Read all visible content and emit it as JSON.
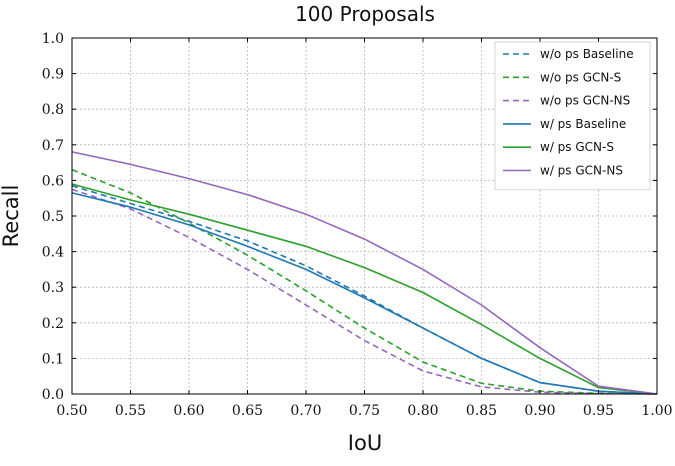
{
  "chart_data": {
    "type": "line",
    "title": "100 Proposals",
    "xlabel": "IoU",
    "ylabel": "Recall",
    "xlim": [
      0.5,
      1.0
    ],
    "ylim": [
      0.0,
      1.0
    ],
    "grid": true,
    "legend_position": "top-right",
    "x_ticks": [
      "0.50",
      "0.55",
      "0.60",
      "0.65",
      "0.70",
      "0.75",
      "0.80",
      "0.85",
      "0.90",
      "0.95",
      "1.00"
    ],
    "y_ticks": [
      "0.0",
      "0.1",
      "0.2",
      "0.3",
      "0.4",
      "0.5",
      "0.6",
      "0.7",
      "0.8",
      "0.9",
      "1.0"
    ],
    "x": [
      0.5,
      0.55,
      0.6,
      0.65,
      0.7,
      0.75,
      0.8,
      0.85,
      0.9,
      0.95,
      1.0
    ],
    "series": [
      {
        "name": "w/o ps Baseline",
        "color": "#1f77b4",
        "dashed": true,
        "values": [
          0.585,
          0.535,
          0.485,
          0.43,
          0.36,
          0.275,
          0.185,
          0.1,
          0.032,
          0.008,
          0.0
        ]
      },
      {
        "name": "w/o ps GCN-S",
        "color": "#2ca02c",
        "dashed": true,
        "values": [
          0.63,
          0.565,
          0.48,
          0.39,
          0.29,
          0.185,
          0.09,
          0.03,
          0.008,
          0.002,
          0.0
        ]
      },
      {
        "name": "w/o ps GCN-NS",
        "color": "#9467bd",
        "dashed": true,
        "values": [
          0.575,
          0.52,
          0.44,
          0.35,
          0.25,
          0.15,
          0.065,
          0.02,
          0.005,
          0.001,
          0.0
        ]
      },
      {
        "name": "w/ ps Baseline",
        "color": "#1f77b4",
        "dashed": false,
        "values": [
          0.565,
          0.525,
          0.475,
          0.415,
          0.35,
          0.27,
          0.185,
          0.1,
          0.032,
          0.008,
          0.0
        ]
      },
      {
        "name": "w/ ps GCN-S",
        "color": "#2ca02c",
        "dashed": false,
        "values": [
          0.59,
          0.545,
          0.505,
          0.46,
          0.415,
          0.355,
          0.285,
          0.195,
          0.1,
          0.018,
          0.0
        ]
      },
      {
        "name": "w/ ps GCN-NS",
        "color": "#9467bd",
        "dashed": false,
        "values": [
          0.68,
          0.645,
          0.605,
          0.56,
          0.505,
          0.435,
          0.35,
          0.25,
          0.13,
          0.022,
          0.0
        ]
      }
    ]
  }
}
